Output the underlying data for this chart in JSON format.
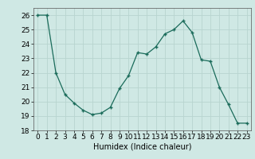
{
  "x": [
    0,
    1,
    2,
    3,
    4,
    5,
    6,
    7,
    8,
    9,
    10,
    11,
    12,
    13,
    14,
    15,
    16,
    17,
    18,
    19,
    20,
    21,
    22,
    23
  ],
  "y": [
    26.0,
    26.0,
    22.0,
    20.5,
    19.9,
    19.4,
    19.1,
    19.2,
    19.6,
    20.9,
    21.8,
    23.4,
    23.3,
    23.8,
    24.7,
    25.0,
    25.6,
    24.8,
    22.9,
    22.8,
    21.0,
    19.8,
    18.5,
    18.5
  ],
  "line_color": "#1a6b5a",
  "marker": "+",
  "marker_size": 3,
  "marker_lw": 1.0,
  "bg_color": "#cfe8e4",
  "grid_color": "#b8d4cf",
  "xlabel": "Humidex (Indice chaleur)",
  "ylim": [
    18,
    26.5
  ],
  "yticks": [
    18,
    19,
    20,
    21,
    22,
    23,
    24,
    25,
    26
  ],
  "xticks": [
    0,
    1,
    2,
    3,
    4,
    5,
    6,
    7,
    8,
    9,
    10,
    11,
    12,
    13,
    14,
    15,
    16,
    17,
    18,
    19,
    20,
    21,
    22,
    23
  ],
  "font_size": 6.5,
  "label_font_size": 7.0,
  "line_width": 0.9
}
